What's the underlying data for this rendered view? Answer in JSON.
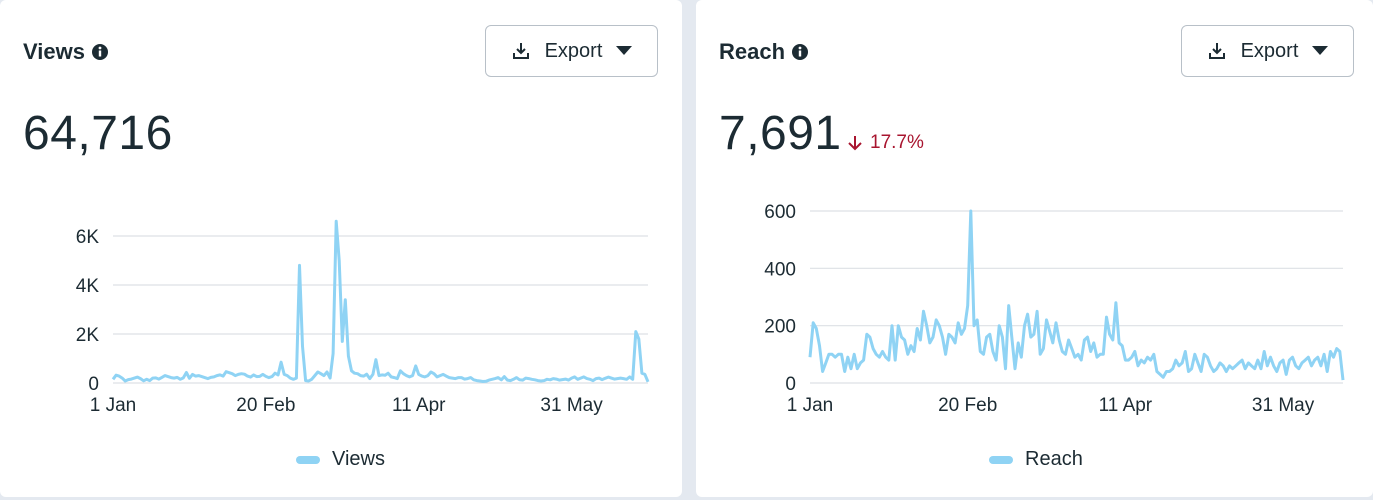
{
  "colors": {
    "series": "#8fd3f4",
    "grid": "#dde1e5",
    "negative": "#a8152f",
    "text": "#1c2b33"
  },
  "views": {
    "title": "Views",
    "info_icon": "info-icon",
    "export_label": "Export",
    "total": "64,716",
    "legend": "Views"
  },
  "reach": {
    "title": "Reach",
    "info_icon": "info-icon",
    "export_label": "Export",
    "total": "7,691",
    "change": "17.7%",
    "change_direction": "down",
    "legend": "Reach"
  },
  "chart_data": [
    {
      "type": "line",
      "title": "Views",
      "x_start": "1 Jan",
      "x_ticks": [
        "1 Jan",
        "20 Feb",
        "11 Apr",
        "31 May"
      ],
      "y_ticks": [
        "0",
        "2K",
        "4K",
        "6K"
      ],
      "ylim": [
        0,
        6000
      ],
      "grid": true,
      "legend_position": "bottom",
      "series": [
        {
          "name": "Views",
          "values": [
            150,
            320,
            280,
            200,
            80,
            140,
            160,
            200,
            240,
            180,
            90,
            150,
            100,
            200,
            210,
            160,
            230,
            300,
            260,
            220,
            200,
            230,
            150,
            210,
            430,
            190,
            350,
            280,
            300,
            260,
            220,
            180,
            230,
            250,
            300,
            330,
            280,
            460,
            420,
            380,
            300,
            350,
            380,
            360,
            280,
            240,
            330,
            260,
            270,
            350,
            270,
            220,
            260,
            400,
            330,
            850,
            350,
            300,
            200,
            150,
            200,
            4800,
            1500,
            100,
            80,
            150,
            300,
            450,
            380,
            300,
            450,
            200,
            1200,
            6600,
            5000,
            1700,
            3400,
            1100,
            500,
            400,
            380,
            300,
            280,
            360,
            180,
            350,
            950,
            300,
            330,
            320,
            400,
            250,
            220,
            180,
            500,
            380,
            300,
            250,
            300,
            700,
            350,
            280,
            250,
            300,
            450,
            380,
            250,
            300,
            350,
            280,
            220,
            200,
            180,
            220,
            220,
            160,
            180,
            220,
            130,
            100,
            80,
            60,
            70,
            120,
            150,
            180,
            220,
            130,
            260,
            120,
            100,
            150,
            220,
            130,
            120,
            200,
            180,
            150,
            130,
            100,
            80,
            100,
            150,
            130,
            180,
            160,
            120,
            140,
            160,
            120,
            200,
            250,
            150,
            200,
            250,
            180,
            150,
            100,
            180,
            200,
            140,
            190,
            240,
            200,
            160,
            180,
            200,
            180,
            150,
            250,
            150,
            2100,
            1800,
            400,
            350,
            50
          ]
        }
      ]
    },
    {
      "type": "line",
      "title": "Reach",
      "x_start": "1 Jan",
      "x_ticks": [
        "1 Jan",
        "20 Feb",
        "11 Apr",
        "31 May"
      ],
      "y_ticks": [
        "0",
        "200",
        "400",
        "600"
      ],
      "ylim": [
        0,
        600
      ],
      "grid": true,
      "legend_position": "bottom",
      "series": [
        {
          "name": "Reach",
          "values": [
            90,
            210,
            190,
            130,
            40,
            70,
            100,
            100,
            90,
            100,
            100,
            40,
            90,
            50,
            100,
            50,
            70,
            80,
            170,
            160,
            120,
            100,
            90,
            110,
            90,
            80,
            200,
            80,
            200,
            160,
            150,
            100,
            130,
            110,
            190,
            150,
            250,
            200,
            140,
            160,
            220,
            200,
            160,
            100,
            170,
            160,
            140,
            210,
            170,
            190,
            270,
            600,
            200,
            220,
            110,
            100,
            160,
            170,
            110,
            80,
            200,
            160,
            50,
            270,
            160,
            50,
            140,
            90,
            200,
            240,
            160,
            170,
            250,
            100,
            120,
            220,
            180,
            140,
            210,
            150,
            110,
            100,
            150,
            120,
            90,
            100,
            80,
            150,
            160,
            110,
            140,
            90,
            100,
            100,
            230,
            170,
            150,
            280,
            140,
            130,
            80,
            80,
            90,
            110,
            60,
            80,
            70,
            90,
            80,
            100,
            40,
            30,
            20,
            40,
            40,
            50,
            80,
            60,
            70,
            110,
            40,
            50,
            100,
            70,
            40,
            100,
            90,
            60,
            40,
            50,
            70,
            60,
            40,
            60,
            50,
            60,
            70,
            80,
            50,
            70,
            60,
            50,
            80,
            50,
            110,
            60,
            90,
            60,
            40,
            70,
            80,
            30,
            80,
            90,
            60,
            50,
            70,
            80,
            90,
            60,
            80,
            90,
            60,
            100,
            40,
            110,
            90,
            120,
            110,
            10
          ]
        }
      ]
    }
  ]
}
